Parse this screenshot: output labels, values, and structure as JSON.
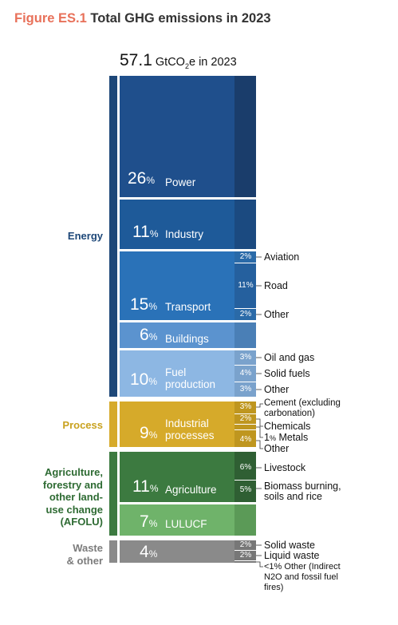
{
  "figure": {
    "label": "Figure ES.1",
    "title": "Total GHG emissions in 2023"
  },
  "total": {
    "value": "57.1",
    "unit_pre": "GtCO",
    "unit_sub": "2",
    "unit_post": "e in 2023"
  },
  "groups": {
    "energy": "Energy",
    "process": "Process",
    "afolu": [
      "Agriculture,",
      "forestry and",
      "other land-",
      "use change",
      "(AFOLU)"
    ],
    "waste": [
      "Waste",
      "& other"
    ]
  },
  "colors": {
    "energy_group": "#1d4778",
    "power": "#1f4f8c",
    "industry": "#1e5a99",
    "transport": "#2a72b8",
    "buildings": "#5b93cf",
    "fuel_production": "#8db7e3",
    "process": "#d6aa2a",
    "agriculture": "#3c7a40",
    "lulucf": "#6fb36a",
    "waste": "#8a8a8a",
    "accent": "#e8715a"
  },
  "chart_data": {
    "type": "bar",
    "title": "Total GHG emissions in 2023",
    "unit": "%",
    "total": "57.1 GtCO2e",
    "sectors": [
      {
        "group": "Energy",
        "name": "Power",
        "value": 26,
        "subsectors": []
      },
      {
        "group": "Energy",
        "name": "Industry",
        "value": 11,
        "subsectors": []
      },
      {
        "group": "Energy",
        "name": "Transport",
        "value": 15,
        "subsectors": [
          {
            "name": "Aviation",
            "value": 2
          },
          {
            "name": "Road",
            "value": 11
          },
          {
            "name": "Other",
            "value": 2
          }
        ]
      },
      {
        "group": "Energy",
        "name": "Buildings",
        "value": 6,
        "subsectors": []
      },
      {
        "group": "Energy",
        "name": "Fuel production",
        "value": 10,
        "subsectors": [
          {
            "name": "Oil and gas",
            "value": 3
          },
          {
            "name": "Solid fuels",
            "value": 4
          },
          {
            "name": "Other",
            "value": 3
          }
        ]
      },
      {
        "group": "Process",
        "name": "Industrial processes",
        "value": 9,
        "subsectors": [
          {
            "name": "Cement (excluding carbonation)",
            "value": 3
          },
          {
            "name": "Chemicals",
            "value": 2
          },
          {
            "name": "Metals",
            "value": "1"
          },
          {
            "name": "Other",
            "value": 4
          }
        ]
      },
      {
        "group": "AFOLU",
        "name": "Agriculture",
        "value": 11,
        "subsectors": [
          {
            "name": "Livestock",
            "value": 6
          },
          {
            "name": "Biomass burning, soils and rice",
            "value": 5
          }
        ]
      },
      {
        "group": "AFOLU",
        "name": "LULUCF",
        "value": 7,
        "subsectors": []
      },
      {
        "group": "Waste & other",
        "name": "",
        "value": 4,
        "subsectors": [
          {
            "name": "Solid waste",
            "value": 2
          },
          {
            "name": "Liquid waste",
            "value": 2
          },
          {
            "name": "Other (Indirect N2O and fossil fuel fires)",
            "value": "<1"
          }
        ]
      }
    ]
  }
}
